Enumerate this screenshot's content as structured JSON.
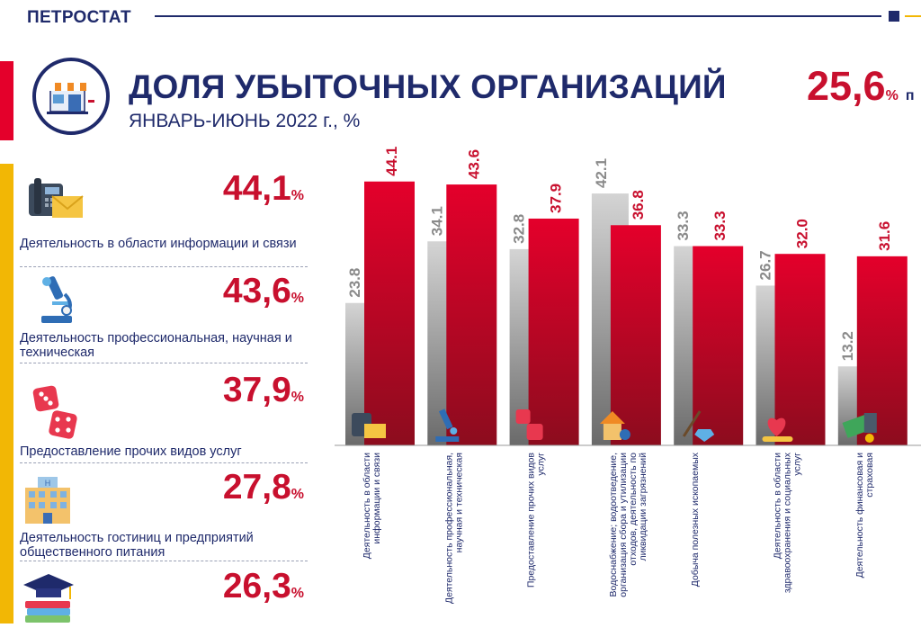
{
  "header": {
    "brand": "ПЕТРОСТАТ",
    "title": "ДОЛЯ УБЫТОЧНЫХ ОРГАНИЗАЦИЙ",
    "subtitle": "ЯНВАРЬ-ИЮНЬ 2022 г., %",
    "headline_value": "25,6",
    "headline_unit": "%",
    "headline_note": "п"
  },
  "colors": {
    "navy": "#1f2a6b",
    "red": "#c8102e",
    "bar_red": "#e4002b",
    "bar_grey": "#c8c8c8",
    "accent_yellow": "#f2b705"
  },
  "left_list": [
    {
      "value": "44,1",
      "unit": "%",
      "label": "Деятельность в области информации и связи",
      "icon": "phone-envelope-icon"
    },
    {
      "value": "43,6",
      "unit": "%",
      "label": "Деятельность профессиональная, научная и техническая",
      "icon": "microscope-icon"
    },
    {
      "value": "37,9",
      "unit": "%",
      "label": "Предоставление прочих видов услуг",
      "icon": "dice-icon"
    },
    {
      "value": "27,8",
      "unit": "%",
      "label": "Деятельность гостиниц и предприятий общественного питания",
      "icon": "hotel-icon"
    },
    {
      "value": "26,3",
      "unit": "%",
      "label": "",
      "icon": "graduation-books-icon"
    }
  ],
  "chart_data": {
    "type": "bar",
    "categories": [
      [
        "Деятельность в области",
        "информации и связи"
      ],
      [
        "Деятельность профессиональная,",
        "научная и техническая"
      ],
      [
        "Предоставление прочих видов",
        "услуг"
      ],
      [
        "Водоснабжение; водоотведение,",
        "организация сбора и утилизации",
        "отходов, деятельность по",
        "ликвидации загрязнений"
      ],
      [
        "Добыча полезных ископаемых"
      ],
      [
        "Деятельность в области",
        "здравоохранения и социальных",
        "услуг"
      ],
      [
        "Деятельность финансовая и",
        "страховая"
      ]
    ],
    "category_icons": [
      "phone-envelope-icon",
      "microscope-icon",
      "dice-icon",
      "house-water-icon",
      "shovel-diamond-icon",
      "heart-hand-icon",
      "money-calculator-icon"
    ],
    "series": [
      {
        "values": [
          23.8,
          34.1,
          32.8,
          42.1,
          33.3,
          26.7,
          13.2
        ],
        "color": "#c8c8c8"
      },
      {
        "values": [
          44.1,
          43.6,
          37.9,
          36.8,
          33.3,
          32.0,
          31.6
        ],
        "color": "#e4002b"
      }
    ],
    "grey_labels": [
      "23.8",
      "34.1",
      "32.8",
      "42.1",
      "33.3",
      "26.7",
      "13.2"
    ],
    "red_labels": [
      "44.1",
      "43.6",
      "37.9",
      "36.8",
      "33.3",
      "32.0",
      "31.6"
    ],
    "ylim": [
      0,
      50
    ],
    "grid": false,
    "legend": "none"
  }
}
